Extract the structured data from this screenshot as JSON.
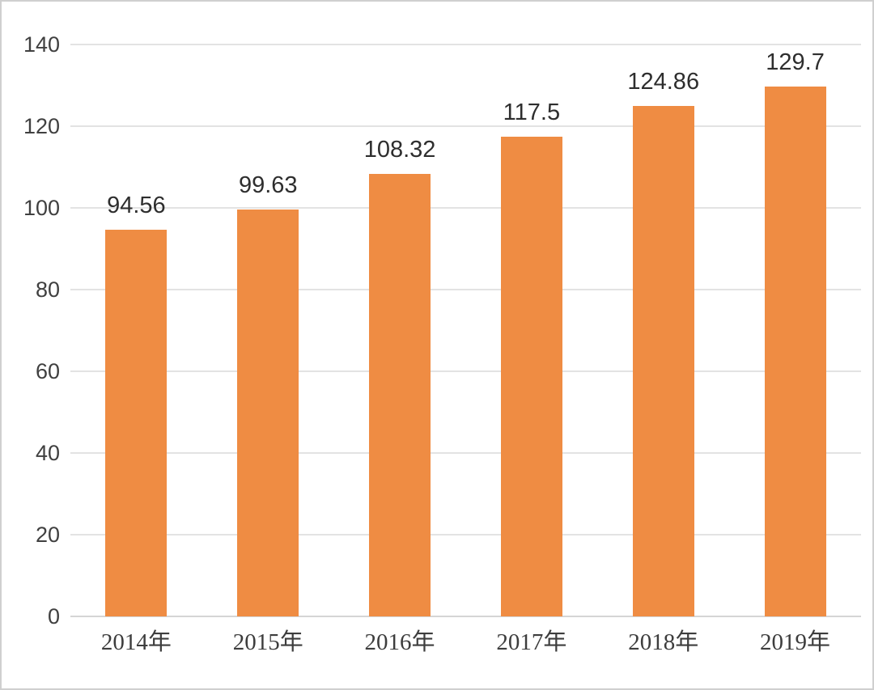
{
  "chart_data": {
    "type": "bar",
    "title": "",
    "xlabel": "",
    "ylabel": "",
    "categories": [
      "2014年",
      "2015年",
      "2016年",
      "2017年",
      "2018年",
      "2019年"
    ],
    "values": [
      94.56,
      99.63,
      108.32,
      117.5,
      124.86,
      129.7
    ],
    "value_labels": [
      "94.56",
      "99.63",
      "108.32",
      "117.5",
      "124.86",
      "129.7"
    ],
    "ylim": [
      0,
      140
    ],
    "ytick_step": 20,
    "ytick_labels": [
      "0",
      "20",
      "40",
      "60",
      "80",
      "100",
      "120",
      "140"
    ],
    "grid": "horizontal",
    "legend": "none",
    "colors": {
      "bar": "#EF8C43",
      "gridline": "#E3E3E3",
      "axis_line": "#D5D5D5",
      "tick_text": "#404040",
      "value_text": "#2E2E2E",
      "category_text": "#3D3D3D",
      "frame_border": "#CFCFCF",
      "background": "#FFFFFF"
    }
  }
}
